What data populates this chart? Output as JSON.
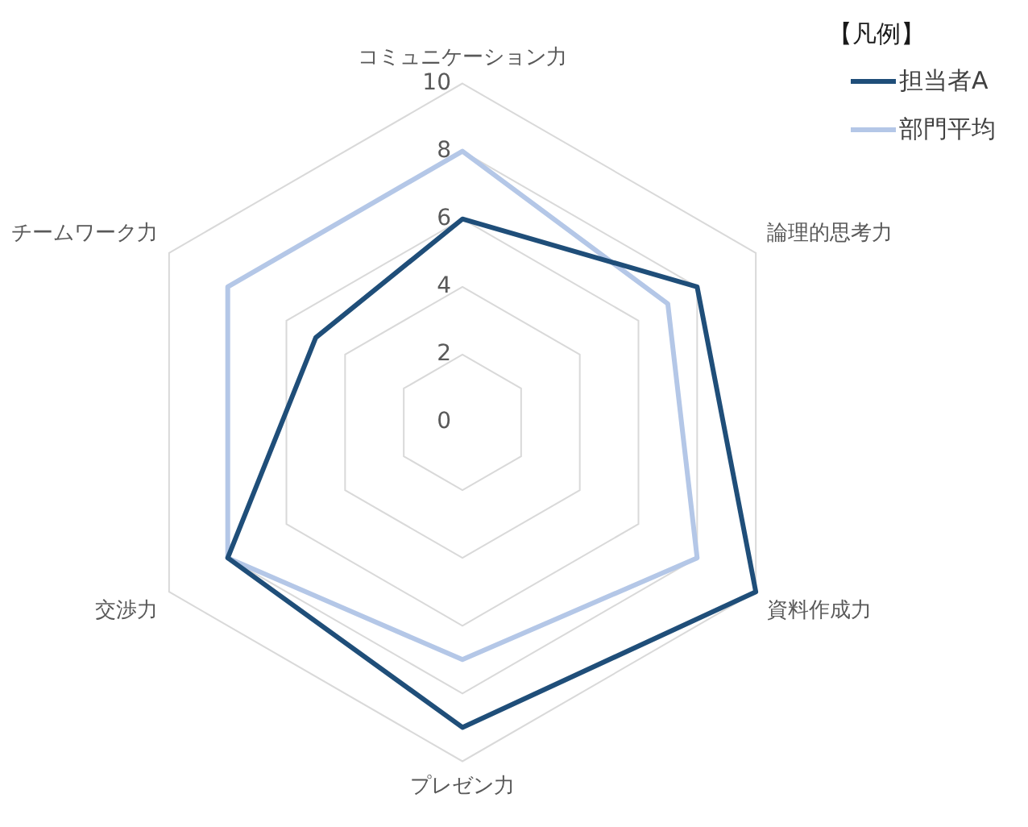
{
  "chart_data": {
    "type": "radar",
    "legend_title": "【凡例】",
    "categories": [
      "コミュニケーション力",
      "論理的思考力",
      "資料作成力",
      "プレゼン力",
      "交渉力",
      "チームワーク力"
    ],
    "series": [
      {
        "name": "担当者A",
        "color": "#1f4e79",
        "values": [
          6,
          8,
          10,
          9,
          8,
          5
        ]
      },
      {
        "name": "部門平均",
        "color": "#b4c7e7",
        "values": [
          8,
          7,
          8,
          7,
          8,
          8
        ]
      }
    ],
    "ylim": [
      0,
      10
    ],
    "yticks": [
      0,
      2,
      4,
      6,
      8,
      10
    ],
    "grid": true,
    "legend": "top right",
    "marker": "none"
  }
}
